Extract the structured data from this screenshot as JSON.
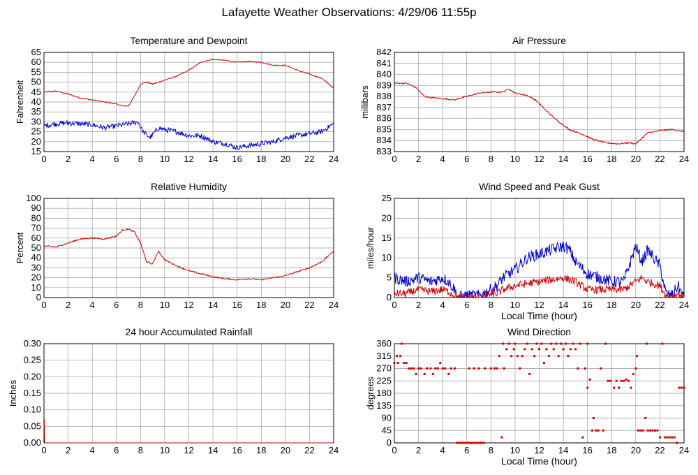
{
  "page": {
    "title": "Lafayette Weather Observations: 4/29/06 11:55p"
  },
  "colors": {
    "primary": "#cc0000",
    "secondary": "#0000cc",
    "grid": "#999999",
    "axes": "#000000"
  },
  "chart_data": [
    {
      "id": "temperature",
      "type": "line",
      "title": "Temperature and Dewpoint",
      "xlabel": "",
      "ylabel": "Fahrenheit",
      "xlim": [
        0,
        24
      ],
      "ylim": [
        15,
        65
      ],
      "xticks": [
        0,
        2,
        4,
        6,
        8,
        10,
        12,
        14,
        16,
        18,
        20,
        22,
        24
      ],
      "yticks": [
        15,
        20,
        25,
        30,
        35,
        40,
        45,
        50,
        55,
        60,
        65
      ],
      "grid": true,
      "series": [
        {
          "color": "#cc0000",
          "noise": 0.25,
          "x": [
            0,
            1,
            2,
            3,
            4,
            5,
            6,
            6.5,
            7,
            7.5,
            8,
            8.5,
            9,
            10,
            11,
            12,
            13,
            14,
            15,
            16,
            17,
            18,
            19,
            20,
            21,
            22,
            23,
            24
          ],
          "y": [
            45,
            45.5,
            44,
            42,
            41,
            40,
            39,
            38,
            38,
            43,
            49,
            50,
            49,
            51,
            53,
            56,
            60,
            61.5,
            61,
            60,
            60.5,
            60,
            58.5,
            58.5,
            56,
            54,
            52,
            47
          ]
        },
        {
          "color": "#0000cc",
          "noise": 1.3,
          "x": [
            0,
            1,
            2,
            3,
            4,
            5,
            6,
            7,
            7.8,
            8.2,
            8.8,
            9.5,
            10,
            11,
            12,
            13,
            14,
            15,
            16,
            17,
            18,
            19,
            20,
            21,
            22,
            23,
            24
          ],
          "y": [
            28,
            29,
            29.5,
            29,
            28.5,
            27,
            28,
            29,
            30,
            25,
            22,
            27,
            26,
            25,
            23,
            23,
            20,
            19,
            17,
            18,
            19,
            20,
            22,
            23,
            24,
            25,
            29
          ]
        }
      ]
    },
    {
      "id": "pressure",
      "type": "line",
      "title": "Air Pressure",
      "xlabel": "",
      "ylabel": "millibars",
      "xlim": [
        0,
        24
      ],
      "ylim": [
        833,
        842
      ],
      "xticks": [
        0,
        2,
        4,
        6,
        8,
        10,
        12,
        14,
        16,
        18,
        20,
        22,
        24
      ],
      "yticks": [
        833,
        834,
        835,
        836,
        837,
        838,
        839,
        840,
        841,
        842
      ],
      "grid": true,
      "series": [
        {
          "color": "#cc0000",
          "noise": 0.06,
          "x": [
            0,
            1,
            1.8,
            2.5,
            3,
            4,
            5,
            6,
            7,
            8,
            9,
            9.5,
            10,
            11,
            11.8,
            12.5,
            13.5,
            14.5,
            15.5,
            16.5,
            17.5,
            18.5,
            19.5,
            20,
            21,
            22,
            23,
            24
          ],
          "y": [
            839.2,
            839.2,
            838.8,
            838,
            837.9,
            837.8,
            837.7,
            838,
            838.3,
            838.4,
            838.4,
            838.7,
            838.3,
            838.1,
            837.6,
            836.8,
            835.8,
            835,
            834.6,
            834.1,
            833.8,
            833.7,
            833.8,
            833.7,
            834.7,
            834.9,
            835,
            834.8
          ]
        }
      ]
    },
    {
      "id": "humidity",
      "type": "line",
      "title": "Relative Humidity",
      "xlabel": "",
      "ylabel": "Percent",
      "xlim": [
        0,
        24
      ],
      "ylim": [
        0,
        100
      ],
      "xticks": [
        0,
        2,
        4,
        6,
        8,
        10,
        12,
        14,
        16,
        18,
        20,
        22,
        24
      ],
      "yticks": [
        0,
        10,
        20,
        30,
        40,
        50,
        60,
        70,
        80,
        90,
        100
      ],
      "grid": true,
      "series": [
        {
          "color": "#cc0000",
          "noise": 0.7,
          "x": [
            0,
            1,
            2,
            3,
            4,
            5,
            6,
            6.5,
            7,
            7.5,
            8,
            8.5,
            9,
            9.5,
            10,
            11,
            12,
            13,
            14,
            15,
            16,
            17,
            18,
            19,
            20,
            21,
            22,
            23,
            24
          ],
          "y": [
            52,
            51,
            55,
            59,
            60,
            59,
            62,
            68,
            69,
            66,
            55,
            36,
            34,
            47,
            38,
            32,
            27,
            24,
            21,
            19,
            18,
            19,
            18,
            20,
            22,
            26,
            30,
            36,
            47
          ]
        }
      ]
    },
    {
      "id": "wind-speed",
      "type": "line",
      "title": "Wind Speed and Peak Gust",
      "xlabel": "Local Time (hour)",
      "ylabel": "miles/hour",
      "xlim": [
        0,
        24
      ],
      "ylim": [
        0,
        25
      ],
      "xticks": [
        0,
        2,
        4,
        6,
        8,
        10,
        12,
        14,
        16,
        18,
        20,
        22,
        24
      ],
      "yticks": [
        0,
        5,
        10,
        15,
        20,
        25
      ],
      "grid": true,
      "series": [
        {
          "color": "#0000cc",
          "noise": 1.5,
          "x": [
            0,
            1,
            2,
            3,
            4,
            4.5,
            5,
            5.2,
            6,
            7,
            8,
            8.5,
            9,
            10,
            11,
            12,
            13,
            14,
            14.5,
            15,
            16,
            17,
            18,
            19,
            20,
            20.5,
            21,
            22,
            22.5,
            23,
            23.5,
            24
          ],
          "y": [
            5,
            4,
            5,
            4,
            5,
            4,
            2,
            0,
            0.5,
            0.5,
            2,
            3,
            5,
            7,
            10,
            11,
            12,
            13,
            12,
            9,
            6,
            5,
            4,
            4,
            13,
            9,
            12,
            8,
            1,
            0.5,
            3,
            0
          ]
        },
        {
          "color": "#cc0000",
          "noise": 1.0,
          "x": [
            0,
            1,
            2,
            3,
            4,
            4.5,
            5,
            5.2,
            6,
            7,
            8,
            8.5,
            9,
            10,
            11,
            12,
            13,
            14,
            14.5,
            15,
            16,
            17,
            18,
            19,
            20,
            20.5,
            21,
            22,
            22.5,
            23,
            23.5,
            24
          ],
          "y": [
            1,
            1,
            2,
            1.5,
            2,
            1.5,
            0.5,
            0,
            0,
            0,
            1,
            1,
            2,
            3,
            3.5,
            4,
            4.5,
            5,
            4.5,
            4,
            2,
            2,
            2,
            2,
            4,
            5,
            4,
            3,
            0.5,
            0,
            1,
            0
          ]
        }
      ]
    },
    {
      "id": "rainfall",
      "type": "line",
      "title": "24 hour Accumulated Rainfall",
      "xlabel": "",
      "ylabel": "Inches",
      "xlim": [
        0,
        24
      ],
      "ylim": [
        0,
        0.3
      ],
      "xticks": [
        0,
        2,
        4,
        6,
        8,
        10,
        12,
        14,
        16,
        18,
        20,
        22,
        24
      ],
      "yticks": [
        "0.00",
        "0.05",
        "0.10",
        "0.15",
        "0.20",
        "0.25",
        "0.30"
      ],
      "grid": true,
      "series": [
        {
          "color": "#cc0000",
          "noise": 0,
          "x": [
            0,
            0.03,
            0.06,
            24
          ],
          "y": [
            0.07,
            0.07,
            0,
            0
          ]
        }
      ]
    },
    {
      "id": "wind-direction",
      "type": "scatter",
      "title": "Wind Direction",
      "xlabel": "Local Time (hour)",
      "ylabel": "degrees",
      "xlim": [
        0,
        24
      ],
      "ylim": [
        0,
        360
      ],
      "xticks": [
        0,
        2,
        4,
        6,
        8,
        10,
        12,
        14,
        16,
        18,
        20,
        22,
        24
      ],
      "yticks": [
        0,
        45,
        90,
        135,
        180,
        225,
        270,
        315,
        360
      ],
      "grid": true,
      "series": [
        {
          "color": "#cc0000",
          "points": [
            [
              0.0,
              290
            ],
            [
              0.2,
              315
            ],
            [
              0.3,
              290
            ],
            [
              0.5,
              315
            ],
            [
              0.6,
              360
            ],
            [
              0.8,
              290
            ],
            [
              1.0,
              290
            ],
            [
              1.2,
              270
            ],
            [
              1.4,
              270
            ],
            [
              1.6,
              270
            ],
            [
              1.8,
              250
            ],
            [
              2.0,
              270
            ],
            [
              2.2,
              270
            ],
            [
              2.5,
              250
            ],
            [
              2.7,
              270
            ],
            [
              3.0,
              270
            ],
            [
              3.2,
              250
            ],
            [
              3.4,
              270
            ],
            [
              3.6,
              270
            ],
            [
              3.8,
              290
            ],
            [
              4.0,
              270
            ],
            [
              4.2,
              270
            ],
            [
              4.5,
              250
            ],
            [
              4.7,
              270
            ],
            [
              5.0,
              270
            ],
            [
              5.2,
              0
            ],
            [
              5.4,
              0
            ],
            [
              5.6,
              0
            ],
            [
              5.8,
              0
            ],
            [
              6.0,
              0
            ],
            [
              6.2,
              0
            ],
            [
              6.4,
              0
            ],
            [
              6.6,
              0
            ],
            [
              6.8,
              0
            ],
            [
              7.0,
              0
            ],
            [
              7.2,
              0
            ],
            [
              7.4,
              0
            ],
            [
              6.2,
              270
            ],
            [
              6.6,
              270
            ],
            [
              7.0,
              270
            ],
            [
              7.5,
              270
            ],
            [
              8.0,
              270
            ],
            [
              8.3,
              270
            ],
            [
              8.5,
              270
            ],
            [
              8.7,
              315
            ],
            [
              8.9,
              20
            ],
            [
              9.0,
              360
            ],
            [
              9.1,
              270
            ],
            [
              9.3,
              340
            ],
            [
              9.5,
              360
            ],
            [
              9.7,
              315
            ],
            [
              9.9,
              340
            ],
            [
              10.0,
              360
            ],
            [
              10.2,
              315
            ],
            [
              10.4,
              270
            ],
            [
              10.6,
              315
            ],
            [
              10.8,
              340
            ],
            [
              11.0,
              360
            ],
            [
              11.2,
              250
            ],
            [
              11.4,
              340
            ],
            [
              11.6,
              315
            ],
            [
              11.8,
              360
            ],
            [
              12.0,
              340
            ],
            [
              12.2,
              360
            ],
            [
              12.4,
              290
            ],
            [
              12.6,
              340
            ],
            [
              12.8,
              315
            ],
            [
              13.0,
              360
            ],
            [
              13.2,
              340
            ],
            [
              13.4,
              360
            ],
            [
              13.6,
              315
            ],
            [
              13.8,
              360
            ],
            [
              14.0,
              340
            ],
            [
              14.2,
              360
            ],
            [
              14.4,
              315
            ],
            [
              14.6,
              340
            ],
            [
              14.8,
              360
            ],
            [
              15.0,
              340
            ],
            [
              15.2,
              270
            ],
            [
              15.4,
              360
            ],
            [
              15.6,
              20
            ],
            [
              15.8,
              270
            ],
            [
              16.0,
              360
            ],
            [
              16.0,
              200
            ],
            [
              16.2,
              230
            ],
            [
              16.4,
              45
            ],
            [
              16.5,
              90
            ],
            [
              16.7,
              45
            ],
            [
              16.9,
              45
            ],
            [
              17.1,
              270
            ],
            [
              17.3,
              45
            ],
            [
              17.5,
              360
            ],
            [
              17.7,
              225
            ],
            [
              17.9,
              225
            ],
            [
              18.2,
              200
            ],
            [
              18.4,
              225
            ],
            [
              18.6,
              200
            ],
            [
              18.8,
              225
            ],
            [
              19.0,
              225
            ],
            [
              19.2,
              230
            ],
            [
              19.4,
              225
            ],
            [
              19.6,
              200
            ],
            [
              19.8,
              250
            ],
            [
              20.0,
              270
            ],
            [
              20.1,
              315
            ],
            [
              20.2,
              45
            ],
            [
              20.4,
              45
            ],
            [
              20.6,
              45
            ],
            [
              20.8,
              90
            ],
            [
              20.9,
              360
            ],
            [
              21.0,
              45
            ],
            [
              21.2,
              45
            ],
            [
              21.4,
              45
            ],
            [
              21.6,
              45
            ],
            [
              21.8,
              45
            ],
            [
              22.0,
              20
            ],
            [
              22.2,
              360
            ],
            [
              22.4,
              20
            ],
            [
              22.6,
              20
            ],
            [
              22.8,
              20
            ],
            [
              23.0,
              20
            ],
            [
              23.2,
              20
            ],
            [
              23.4,
              0
            ],
            [
              23.6,
              200
            ],
            [
              23.8,
              200
            ],
            [
              24.0,
              200
            ]
          ]
        }
      ]
    }
  ]
}
